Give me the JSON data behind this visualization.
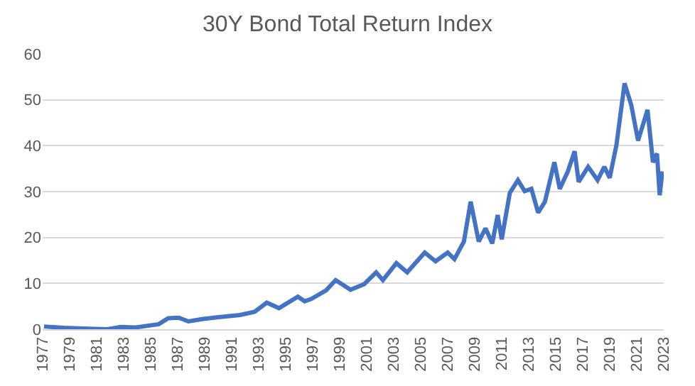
{
  "chart_data": {
    "type": "line",
    "title": "30Y Bond Total Return Index",
    "x": [
      1977.1,
      1978.6,
      1980.4,
      1981.8,
      1982.8,
      1983.9,
      1985.6,
      1986.3,
      1987.1,
      1987.8,
      1988.8,
      1989.9,
      1991.6,
      1992.7,
      1993.6,
      1994.5,
      1995.9,
      1996.4,
      1996.9,
      1998.0,
      1998.7,
      1999.8,
      2000.8,
      2001.7,
      2002.2,
      2003.2,
      2004.0,
      2005.3,
      2006.1,
      2007.0,
      2007.5,
      2008.2,
      2008.7,
      2009.3,
      2009.8,
      2010.3,
      2010.7,
      2011.0,
      2011.6,
      2012.2,
      2012.7,
      2013.2,
      2013.7,
      2014.2,
      2014.9,
      2015.3,
      2015.9,
      2016.4,
      2016.7,
      2017.4,
      2018.1,
      2018.6,
      2019.0,
      2019.5,
      2020.1,
      2020.6,
      2021.1,
      2021.8,
      2022.2,
      2022.5,
      2022.7,
      2022.9
    ],
    "series": [
      {
        "color": "#4472c4",
        "values": [
          0.6,
          0.3,
          0.1,
          0.0,
          0.5,
          0.4,
          1.1,
          2.4,
          2.5,
          1.7,
          2.2,
          2.6,
          3.1,
          3.8,
          5.8,
          4.6,
          7.1,
          6.1,
          6.6,
          8.5,
          10.7,
          8.6,
          9.8,
          12.4,
          10.7,
          14.4,
          12.4,
          16.7,
          14.8,
          16.7,
          15.3,
          19.1,
          27.8,
          19.1,
          22.0,
          18.7,
          24.9,
          19.6,
          29.7,
          32.5,
          30.1,
          30.6,
          25.4,
          27.8,
          36.4,
          30.6,
          34.4,
          38.8,
          32.1,
          35.4,
          32.5,
          35.4,
          33.0,
          40.2,
          53.6,
          48.8,
          41.1,
          47.8,
          36.4,
          38.3,
          29.2,
          34.4
        ]
      }
    ],
    "xlim": [
      1977,
      2023
    ],
    "xticks": [
      {
        "value": 1977,
        "label": "1977"
      },
      {
        "value": 1979,
        "label": "1979"
      },
      {
        "value": 1981,
        "label": "1981"
      },
      {
        "value": 1983,
        "label": "1983"
      },
      {
        "value": 1985,
        "label": "1985"
      },
      {
        "value": 1987,
        "label": "1987"
      },
      {
        "value": 1989,
        "label": "1989"
      },
      {
        "value": 1991,
        "label": "1991"
      },
      {
        "value": 1993,
        "label": "1993"
      },
      {
        "value": 1995,
        "label": "1995"
      },
      {
        "value": 1997,
        "label": "1997"
      },
      {
        "value": 1999,
        "label": "1999"
      },
      {
        "value": 2001,
        "label": "2001"
      },
      {
        "value": 2003,
        "label": "2003"
      },
      {
        "value": 2005,
        "label": "2005"
      },
      {
        "value": 2007,
        "label": "2007"
      },
      {
        "value": 2009,
        "label": "2009"
      },
      {
        "value": 2011,
        "label": "2011"
      },
      {
        "value": 2013,
        "label": "2013"
      },
      {
        "value": 2015,
        "label": "2015"
      },
      {
        "value": 2017,
        "label": "2017"
      },
      {
        "value": 2019,
        "label": "2019"
      },
      {
        "value": 2021,
        "label": "2021"
      },
      {
        "value": 2023,
        "label": "2023"
      }
    ],
    "ylim": [
      0,
      60
    ],
    "yticks": [
      0,
      10,
      20,
      30,
      40,
      50,
      60
    ],
    "grid": "y",
    "marker": "none",
    "line_style": "solid"
  }
}
